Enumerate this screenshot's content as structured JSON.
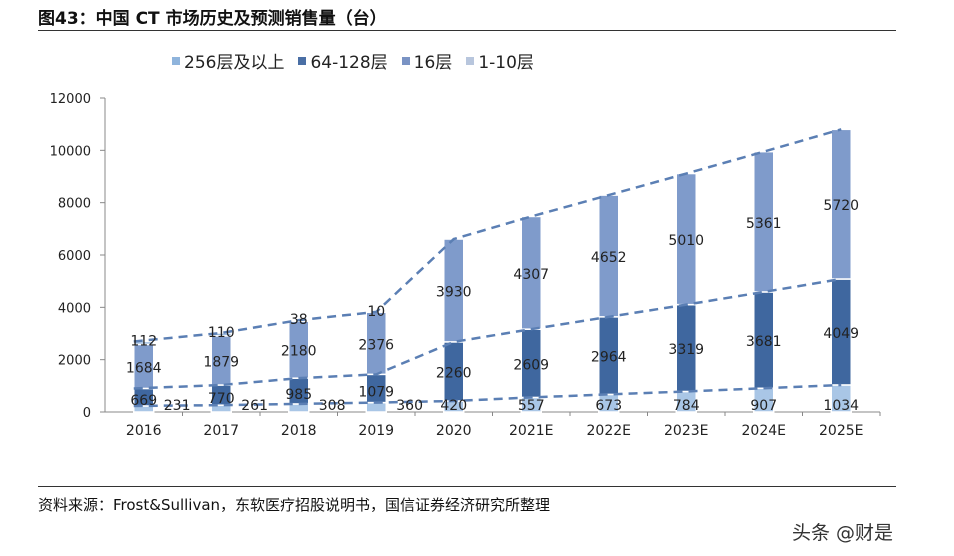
{
  "title": "图43：中国 CT 市场历史及预测销售量（台）",
  "source": "资料来源：Frost&Sullivan，东软医疗招股说明书，国信证券经济研究所整理",
  "watermark": "头条 @财是",
  "chart_data": {
    "type": "bar",
    "stacked": true,
    "categories": [
      "2016",
      "2017",
      "2018",
      "2019",
      "2020",
      "2021E",
      "2022E",
      "2023E",
      "2024E",
      "2025E"
    ],
    "series": [
      {
        "name": "1-10层",
        "color": "#a9c6e6",
        "values": [
          231,
          261,
          308,
          360,
          420,
          557,
          673,
          784,
          907,
          1034
        ]
      },
      {
        "name": "64-128层",
        "color": "#3f679f",
        "values": [
          669,
          770,
          985,
          1079,
          2260,
          2609,
          2964,
          3319,
          3681,
          4049
        ]
      },
      {
        "name": "16层",
        "color": "#7f9bcb",
        "values": [
          1684,
          1879,
          2180,
          2376,
          3930,
          4307,
          4652,
          5010,
          5361,
          5720
        ]
      },
      {
        "name": "256层及以上",
        "color": "#9cbbe0",
        "values": [
          112,
          110,
          38,
          10,
          null,
          null,
          null,
          null,
          null,
          null
        ]
      }
    ],
    "legend_order": [
      "256层及以上",
      "64-128层",
      "16层",
      "1-10层"
    ],
    "legend_colors": {
      "256层及以上": "#8fb4dc",
      "64-128层": "#4a6fa5",
      "16层": "#7a93c4",
      "1-10层": "#b8c6dd"
    },
    "yticks": [
      0,
      2000,
      4000,
      6000,
      8000,
      10000,
      12000
    ],
    "ylim": [
      0,
      12000
    ],
    "trend_lines": "dashed",
    "legend_position": "top"
  }
}
